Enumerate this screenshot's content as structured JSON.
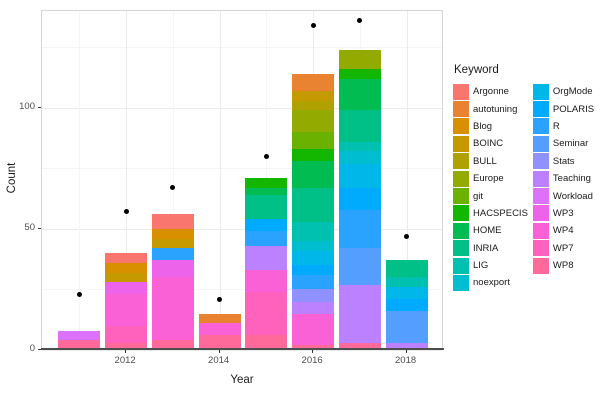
{
  "axes": {
    "x": {
      "label": "Year",
      "tick_values": [
        2012,
        2014,
        2016,
        2018
      ],
      "minor_values": [
        2011,
        2013,
        2015,
        2017
      ],
      "lim": [
        2010.2,
        2018.8
      ]
    },
    "y": {
      "label": "Count",
      "tick_values": [
        0,
        50,
        100
      ],
      "minor_values": [
        25,
        75,
        125
      ],
      "lim": [
        0,
        140
      ]
    }
  },
  "legend": {
    "title": "Keyword",
    "column_split": 12
  },
  "colors": {
    "grid_major": "#ebebeb",
    "grid_minor": "#f5f5f5",
    "axis_line": "#4d4d4d",
    "point": "#000000"
  },
  "chart_data": {
    "type": "bar",
    "stacked": true,
    "title": "",
    "xlabel": "Year",
    "ylabel": "Count",
    "legend_title": "Keyword",
    "legend_position": "right",
    "grid": true,
    "ylim": [
      0,
      140
    ],
    "xlim": [
      2010.2,
      2018.8
    ],
    "categories": [
      2011,
      2012,
      2013,
      2014,
      2015,
      2016,
      2017,
      2018
    ],
    "keywords": [
      {
        "name": "Argonne",
        "color": "#F8766D"
      },
      {
        "name": "autotuning",
        "color": "#EA8331"
      },
      {
        "name": "Blog",
        "color": "#D89000"
      },
      {
        "name": "BOINC",
        "color": "#C59900"
      },
      {
        "name": "BULL",
        "color": "#AFA100"
      },
      {
        "name": "Europe",
        "color": "#93AA00"
      },
      {
        "name": "git",
        "color": "#6BB100"
      },
      {
        "name": "HACSPECIS",
        "color": "#13B700"
      },
      {
        "name": "HOME",
        "color": "#00BC51"
      },
      {
        "name": "INRIA",
        "color": "#00C087"
      },
      {
        "name": "LIG",
        "color": "#00C0AF"
      },
      {
        "name": "noexport",
        "color": "#00BDD0"
      },
      {
        "name": "OrgMode",
        "color": "#00B7E9"
      },
      {
        "name": "POLARIS",
        "color": "#00ABFD"
      },
      {
        "name": "R",
        "color": "#29A3FF"
      },
      {
        "name": "Seminar",
        "color": "#549EFF"
      },
      {
        "name": "Stats",
        "color": "#8F91FF"
      },
      {
        "name": "Teaching",
        "color": "#BC81FF"
      },
      {
        "name": "Workload",
        "color": "#DC71FA"
      },
      {
        "name": "WP3",
        "color": "#ED63E9"
      },
      {
        "name": "WP4",
        "color": "#FB61D7"
      },
      {
        "name": "WP7",
        "color": "#FF62BC"
      },
      {
        "name": "WP8",
        "color": "#FF6A9A"
      }
    ],
    "bars": [
      {
        "year": 2011,
        "total": 8,
        "segments_bottom_to_top": [
          {
            "keyword": "WP8",
            "value": 4
          },
          {
            "keyword": "Workload",
            "value": 4
          }
        ]
      },
      {
        "year": 2012,
        "total": 40,
        "segments_bottom_to_top": [
          {
            "keyword": "WP8",
            "value": 3
          },
          {
            "keyword": "WP7",
            "value": 7
          },
          {
            "keyword": "WP4",
            "value": 13
          },
          {
            "keyword": "WP3",
            "value": 5
          },
          {
            "keyword": "BOINC",
            "value": 4
          },
          {
            "keyword": "Blog",
            "value": 4
          },
          {
            "keyword": "Argonne",
            "value": 4
          }
        ]
      },
      {
        "year": 2013,
        "total": 56,
        "segments_bottom_to_top": [
          {
            "keyword": "WP8",
            "value": 4
          },
          {
            "keyword": "WP4",
            "value": 26
          },
          {
            "keyword": "WP3",
            "value": 7
          },
          {
            "keyword": "R",
            "value": 5
          },
          {
            "keyword": "BOINC",
            "value": 4
          },
          {
            "keyword": "Blog",
            "value": 4
          },
          {
            "keyword": "Argonne",
            "value": 6
          }
        ]
      },
      {
        "year": 2014,
        "total": 15,
        "segments_bottom_to_top": [
          {
            "keyword": "WP8",
            "value": 6
          },
          {
            "keyword": "WP4",
            "value": 5
          },
          {
            "keyword": "autotuning",
            "value": 4
          }
        ]
      },
      {
        "year": 2015,
        "total": 71,
        "segments_bottom_to_top": [
          {
            "keyword": "WP8",
            "value": 6
          },
          {
            "keyword": "WP7",
            "value": 18
          },
          {
            "keyword": "WP4",
            "value": 9
          },
          {
            "keyword": "Teaching",
            "value": 10
          },
          {
            "keyword": "R",
            "value": 6
          },
          {
            "keyword": "POLARIS",
            "value": 5
          },
          {
            "keyword": "INRIA",
            "value": 10
          },
          {
            "keyword": "HOME",
            "value": 3
          },
          {
            "keyword": "HACSPECIS",
            "value": 4
          }
        ]
      },
      {
        "year": 2016,
        "total": 114,
        "segments_bottom_to_top": [
          {
            "keyword": "WP8",
            "value": 2
          },
          {
            "keyword": "WP4",
            "value": 13
          },
          {
            "keyword": "Teaching",
            "value": 5
          },
          {
            "keyword": "Stats",
            "value": 5
          },
          {
            "keyword": "R",
            "value": 6
          },
          {
            "keyword": "POLARIS",
            "value": 4
          },
          {
            "keyword": "OrgMode",
            "value": 6
          },
          {
            "keyword": "noexport",
            "value": 4
          },
          {
            "keyword": "LIG",
            "value": 8
          },
          {
            "keyword": "INRIA",
            "value": 14
          },
          {
            "keyword": "HOME",
            "value": 11
          },
          {
            "keyword": "HACSPECIS",
            "value": 5
          },
          {
            "keyword": "git",
            "value": 7
          },
          {
            "keyword": "Europe",
            "value": 9
          },
          {
            "keyword": "BULL",
            "value": 4
          },
          {
            "keyword": "BOINC",
            "value": 4
          },
          {
            "keyword": "autotuning",
            "value": 7
          }
        ]
      },
      {
        "year": 2017,
        "total": 124,
        "segments_bottom_to_top": [
          {
            "keyword": "WP8",
            "value": 3
          },
          {
            "keyword": "Teaching",
            "value": 24
          },
          {
            "keyword": "Seminar",
            "value": 15
          },
          {
            "keyword": "R",
            "value": 16
          },
          {
            "keyword": "POLARIS",
            "value": 9
          },
          {
            "keyword": "OrgMode",
            "value": 10
          },
          {
            "keyword": "noexport",
            "value": 5
          },
          {
            "keyword": "LIG",
            "value": 4
          },
          {
            "keyword": "INRIA",
            "value": 13
          },
          {
            "keyword": "HOME",
            "value": 13
          },
          {
            "keyword": "HACSPECIS",
            "value": 4
          },
          {
            "keyword": "Europe",
            "value": 8
          }
        ]
      },
      {
        "year": 2018,
        "total": 37,
        "segments_bottom_to_top": [
          {
            "keyword": "Teaching",
            "value": 3
          },
          {
            "keyword": "Seminar",
            "value": 13
          },
          {
            "keyword": "POLARIS",
            "value": 5
          },
          {
            "keyword": "OrgMode",
            "value": 5
          },
          {
            "keyword": "LIG",
            "value": 4
          },
          {
            "keyword": "INRIA",
            "value": 7
          }
        ]
      }
    ],
    "points": [
      {
        "year": 2011,
        "value": 23
      },
      {
        "year": 2012,
        "value": 57
      },
      {
        "year": 2013,
        "value": 67
      },
      {
        "year": 2014,
        "value": 21
      },
      {
        "year": 2015,
        "value": 80
      },
      {
        "year": 2016,
        "value": 134
      },
      {
        "year": 2017,
        "value": 136
      },
      {
        "year": 2018,
        "value": 47
      }
    ]
  }
}
